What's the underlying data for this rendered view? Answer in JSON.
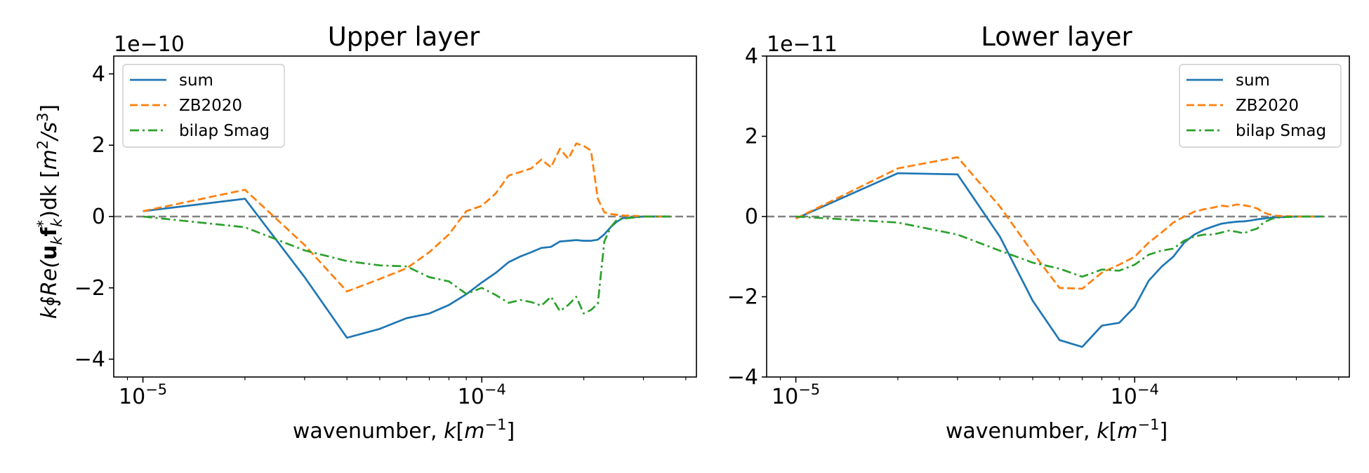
{
  "figure": {
    "ylabel": "k∮Re(u_k f_k*)dk [m²/s³]",
    "ylabel_parts": {
      "k": "k",
      "oint": "∮",
      "re": "Re(",
      "u": "u",
      "u_sub": "k",
      "f": "f",
      "f_sub": "k",
      "f_sup": "*",
      "tail": ")dk [",
      "m": "m",
      "m_sup": "2",
      "slash": "/",
      "s": "s",
      "s_sup": "3",
      "close": "]"
    }
  },
  "xlabel_parts": {
    "prefix": "wavenumber, ",
    "k": "k",
    "bracket_open": "[",
    "m": "m",
    "m_sup": "−1",
    "bracket_close": "]"
  },
  "chart_data": [
    {
      "type": "line",
      "title": "Upper layer",
      "xlabel": "wavenumber, k[m⁻¹]",
      "xscale": "log",
      "xlim": [
        8.2e-06,
        0.00043
      ],
      "ylim": [
        -4.5,
        4.5
      ],
      "y_multiplier": "1e−10",
      "yticks": [
        -4,
        -2,
        0,
        2,
        4
      ],
      "ytick_labels": [
        "−4",
        "−2",
        "0",
        "2",
        "4"
      ],
      "xticks": [
        1e-05,
        0.0001
      ],
      "xtick_labels": [
        {
          "base": "10",
          "exp": "−5"
        },
        {
          "base": "10",
          "exp": "−4"
        }
      ],
      "zero_line": {
        "y": 0,
        "color": "#808080",
        "style": "dashed"
      },
      "legend_position": "top-left",
      "grid": false,
      "series": [
        {
          "name": "sum",
          "color": "#1f77b4",
          "dash": "solid",
          "x": [
            1e-05,
            2e-05,
            3e-05,
            4e-05,
            5e-05,
            6e-05,
            7e-05,
            8e-05,
            9e-05,
            0.0001,
            0.00011,
            0.00012,
            0.00013,
            0.00014,
            0.00015,
            0.00016,
            0.00017,
            0.00018,
            0.00019,
            0.0002,
            0.00021,
            0.00022,
            0.00023,
            0.00024,
            0.00025,
            0.00026,
            0.00028,
            0.0003,
            0.00033,
            0.00036
          ],
          "y": [
            0.15,
            0.5,
            -1.7,
            -3.4,
            -3.15,
            -2.85,
            -2.72,
            -2.48,
            -2.18,
            -1.85,
            -1.58,
            -1.28,
            -1.12,
            -1.0,
            -0.88,
            -0.85,
            -0.7,
            -0.68,
            -0.66,
            -0.68,
            -0.68,
            -0.65,
            -0.5,
            -0.3,
            -0.15,
            -0.05,
            -0.02,
            0.0,
            0.0,
            0.0
          ]
        },
        {
          "name": "ZB2020",
          "color": "#ff7f0e",
          "dash": "dashed",
          "x": [
            1e-05,
            2e-05,
            3e-05,
            4e-05,
            5e-05,
            6e-05,
            7e-05,
            8e-05,
            9e-05,
            0.0001,
            0.00011,
            0.00012,
            0.00013,
            0.00014,
            0.00015,
            0.00016,
            0.00017,
            0.00018,
            0.00019,
            0.0002,
            0.00021,
            0.00022,
            0.00023,
            0.00024,
            0.00025,
            0.00026,
            0.00028,
            0.0003,
            0.00033,
            0.00036
          ],
          "y": [
            0.15,
            0.75,
            -0.8,
            -2.1,
            -1.75,
            -1.45,
            -1.0,
            -0.5,
            0.15,
            0.3,
            0.65,
            1.15,
            1.25,
            1.35,
            1.6,
            1.38,
            1.9,
            1.62,
            2.05,
            1.98,
            1.85,
            0.5,
            0.12,
            0.07,
            0.05,
            0.03,
            0.02,
            0.0,
            0.0,
            0.0
          ]
        },
        {
          "name": "bilap Smag",
          "color": "#2ca02c",
          "dash": "dashdot",
          "x": [
            1e-05,
            2e-05,
            3e-05,
            4e-05,
            5e-05,
            6e-05,
            7e-05,
            8e-05,
            9e-05,
            0.0001,
            0.00011,
            0.00012,
            0.00013,
            0.00014,
            0.00015,
            0.00016,
            0.00017,
            0.00018,
            0.00019,
            0.0002,
            0.00021,
            0.00022,
            0.00023,
            0.00024,
            0.00025,
            0.00026,
            0.00028,
            0.0003,
            0.00033,
            0.00036
          ],
          "y": [
            0.0,
            -0.3,
            -0.95,
            -1.25,
            -1.37,
            -1.4,
            -1.7,
            -1.82,
            -2.17,
            -2.0,
            -2.2,
            -2.42,
            -2.34,
            -2.4,
            -2.5,
            -2.25,
            -2.65,
            -2.48,
            -2.25,
            -2.72,
            -2.62,
            -2.45,
            -0.7,
            -0.3,
            -0.1,
            -0.06,
            -0.03,
            0.0,
            0.0,
            0.0
          ]
        }
      ]
    },
    {
      "type": "line",
      "title": "Lower layer",
      "xlabel": "wavenumber, k[m⁻¹]",
      "xscale": "log",
      "xlim": [
        8.2e-06,
        0.00043
      ],
      "ylim": [
        -4.0,
        4.0
      ],
      "y_multiplier": "1e−11",
      "yticks": [
        -4,
        -2,
        0,
        2,
        4
      ],
      "ytick_labels": [
        "−4",
        "−2",
        "0",
        "2",
        "4"
      ],
      "xticks": [
        1e-05,
        0.0001
      ],
      "xtick_labels": [
        {
          "base": "10",
          "exp": "−5"
        },
        {
          "base": "10",
          "exp": "−4"
        }
      ],
      "zero_line": {
        "y": 0,
        "color": "#808080",
        "style": "dashed"
      },
      "legend_position": "top-right",
      "grid": false,
      "series": [
        {
          "name": "sum",
          "color": "#1f77b4",
          "dash": "solid",
          "x": [
            1e-05,
            2e-05,
            3e-05,
            4e-05,
            5e-05,
            6e-05,
            7e-05,
            8e-05,
            9e-05,
            0.0001,
            0.00011,
            0.00012,
            0.00013,
            0.00014,
            0.00015,
            0.00016,
            0.00017,
            0.00018,
            0.00019,
            0.0002,
            0.00021,
            0.00022,
            0.00023,
            0.00024,
            0.00025,
            0.00026,
            0.00028,
            0.0003,
            0.00033,
            0.00036
          ],
          "y": [
            -0.05,
            1.08,
            1.05,
            -0.5,
            -2.1,
            -3.08,
            -3.25,
            -2.72,
            -2.65,
            -2.25,
            -1.6,
            -1.25,
            -1.0,
            -0.65,
            -0.45,
            -0.33,
            -0.25,
            -0.18,
            -0.15,
            -0.13,
            -0.12,
            -0.1,
            -0.07,
            -0.05,
            -0.03,
            -0.02,
            -0.01,
            0.0,
            0.0,
            0.0
          ]
        },
        {
          "name": "ZB2020",
          "color": "#ff7f0e",
          "dash": "dashed",
          "x": [
            1e-05,
            2e-05,
            3e-05,
            4e-05,
            5e-05,
            6e-05,
            7e-05,
            8e-05,
            9e-05,
            0.0001,
            0.00011,
            0.00012,
            0.00013,
            0.00014,
            0.00015,
            0.00016,
            0.00017,
            0.00018,
            0.00019,
            0.0002,
            0.00021,
            0.00022,
            0.00023,
            0.00024,
            0.00025,
            0.00026,
            0.00028,
            0.0003,
            0.00033,
            0.00036
          ],
          "y": [
            -0.05,
            1.2,
            1.48,
            0.25,
            -0.9,
            -1.78,
            -1.8,
            -1.4,
            -1.2,
            -1.0,
            -0.65,
            -0.4,
            -0.15,
            0.0,
            0.12,
            0.18,
            0.22,
            0.27,
            0.25,
            0.3,
            0.28,
            0.25,
            0.2,
            0.1,
            0.05,
            0.02,
            0.01,
            0.0,
            0.0,
            0.0
          ]
        },
        {
          "name": "bilap Smag",
          "color": "#2ca02c",
          "dash": "dashdot",
          "x": [
            1e-05,
            2e-05,
            3e-05,
            4e-05,
            5e-05,
            6e-05,
            7e-05,
            8e-05,
            9e-05,
            0.0001,
            0.00011,
            0.00012,
            0.00013,
            0.00014,
            0.00015,
            0.00016,
            0.00017,
            0.00018,
            0.00019,
            0.0002,
            0.00021,
            0.00022,
            0.00023,
            0.00024,
            0.00025,
            0.00026,
            0.00028,
            0.0003,
            0.00033,
            0.00036
          ],
          "y": [
            0.0,
            -0.15,
            -0.45,
            -0.85,
            -1.15,
            -1.3,
            -1.5,
            -1.32,
            -1.35,
            -1.2,
            -0.95,
            -0.85,
            -0.8,
            -0.6,
            -0.5,
            -0.45,
            -0.45,
            -0.4,
            -0.35,
            -0.38,
            -0.42,
            -0.35,
            -0.3,
            -0.15,
            -0.08,
            -0.03,
            -0.01,
            0.0,
            0.0,
            0.0
          ]
        }
      ]
    }
  ]
}
